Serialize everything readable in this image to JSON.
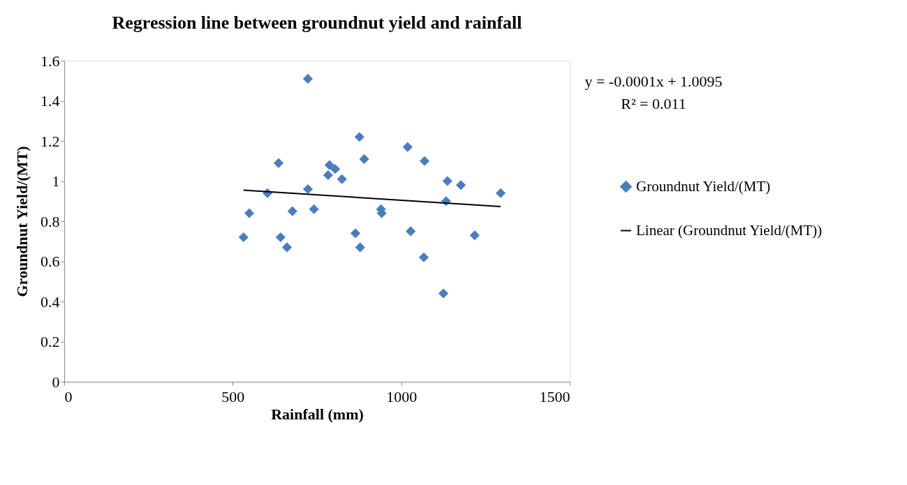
{
  "chart_data": {
    "type": "scatter",
    "title": "Regression line between groundnut yield and rainfall",
    "xlabel": "Rainfall (mm)",
    "ylabel": "Groundnut Yield/(MT)",
    "xlim": [
      0,
      1500
    ],
    "xticks": [
      0,
      500,
      1000,
      1500
    ],
    "ylim": [
      0,
      1.6
    ],
    "yticks": [
      0,
      0.2,
      0.4,
      0.6,
      0.8,
      1,
      1.2,
      1.4,
      1.6
    ],
    "grid": false,
    "legend": "right",
    "annotations": [
      "y = -0.0001x + 1.0095",
      "R² = 0.011"
    ],
    "series": [
      {
        "name": "Groundnut Yield/(MT)",
        "marker": "diamond",
        "color": "#4a7ebb",
        "x": [
          532,
          549,
          603,
          636,
          642,
          661,
          677,
          723,
          723,
          741,
          787,
          783,
          804,
          824,
          864,
          876,
          878,
          890,
          940,
          942,
          1019,
          1028,
          1069,
          1067,
          1125,
          1133,
          1137,
          1177,
          1218,
          1295
        ],
        "values": [
          0.72,
          0.84,
          0.94,
          1.09,
          0.72,
          0.67,
          0.85,
          1.51,
          0.96,
          0.86,
          1.08,
          1.03,
          1.06,
          1.01,
          0.74,
          1.22,
          0.67,
          1.11,
          0.86,
          0.84,
          1.17,
          0.75,
          1.1,
          0.62,
          0.44,
          0.9,
          1.0,
          0.98,
          0.73,
          0.94
        ]
      },
      {
        "name": "Linear (Groundnut Yield/(MT))",
        "type": "line",
        "line_style": "solid",
        "color": "#000000",
        "x": [
          532,
          1295
        ],
        "values": [
          0.955,
          0.873
        ]
      }
    ]
  }
}
